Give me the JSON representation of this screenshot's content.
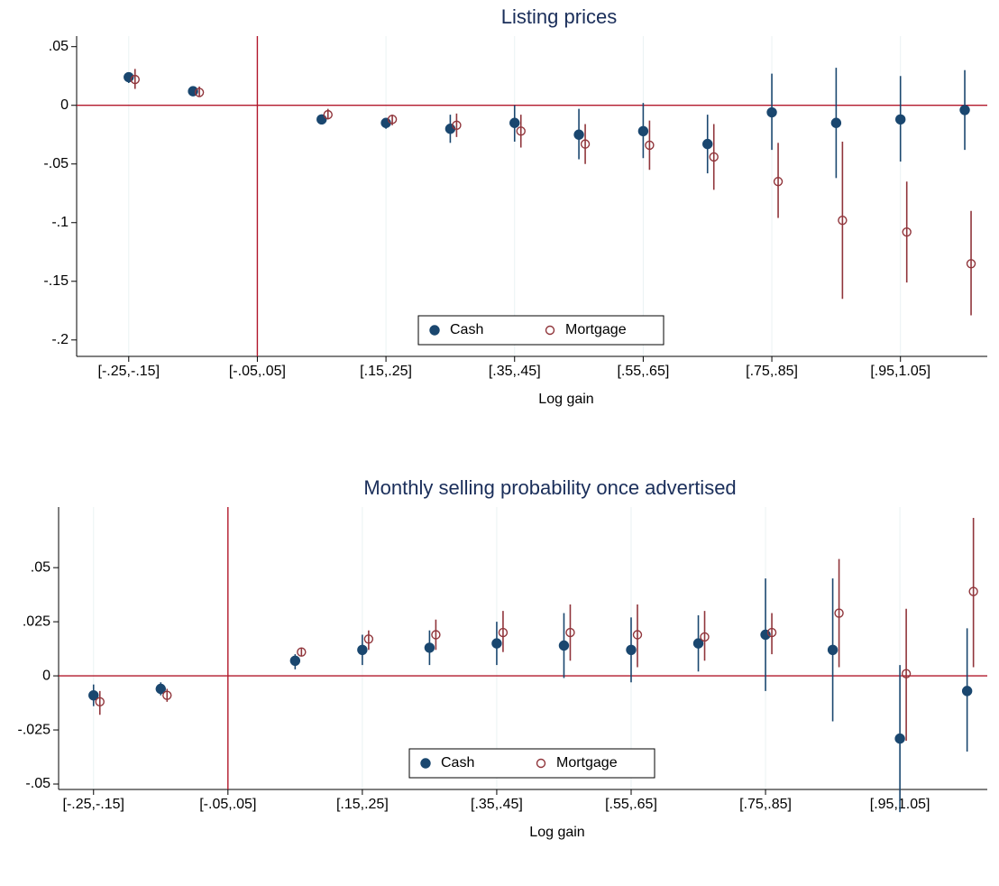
{
  "chart_data": [
    {
      "type": "scatter",
      "title": "Listing prices",
      "x_label": "Log gain",
      "categories": [
        "[-.25,-.15]",
        null,
        "[-.05,.05]",
        null,
        "[.15,.25]",
        null,
        "[.35,.45]",
        null,
        "[.55,.65]",
        null,
        "[.75,.85]",
        null,
        "[.95,1.05]",
        null
      ],
      "ylim": [
        -0.214,
        0.059
      ],
      "yticks": [
        {
          "value": 0.05,
          "label": ".05"
        },
        0,
        {
          "value": -0.05,
          "label": "-.05"
        },
        {
          "value": -0.1,
          "label": "-.1"
        },
        {
          "value": -0.15,
          "label": "-.15"
        },
        {
          "value": -0.2,
          "label": "-.2"
        }
      ],
      "reference_lines": {
        "y": 0,
        "x": "[-.05,.05]",
        "color": "#b2182b"
      },
      "grid": true,
      "legend": "bottom",
      "series": [
        {
          "name": "Cash",
          "color": "#1a476f",
          "marker": "filled",
          "values": [
            0.024,
            0.012,
            null,
            -0.012,
            -0.015,
            -0.02,
            -0.015,
            -0.025,
            -0.022,
            -0.033,
            -0.006,
            -0.015,
            -0.012,
            -0.004
          ],
          "ci_low": [
            0.019,
            0.008,
            null,
            -0.015,
            -0.02,
            -0.032,
            -0.031,
            -0.046,
            -0.045,
            -0.058,
            -0.038,
            -0.062,
            -0.048,
            -0.038
          ],
          "ci_high": [
            0.028,
            0.015,
            null,
            -0.009,
            -0.011,
            -0.008,
            0,
            -0.003,
            0.002,
            -0.008,
            0.027,
            0.032,
            0.025,
            0.03
          ]
        },
        {
          "name": "Mortgage",
          "color": "#90353b",
          "marker": "hollow",
          "values": [
            0.022,
            0.011,
            null,
            -0.008,
            -0.012,
            -0.017,
            -0.022,
            -0.033,
            -0.034,
            -0.044,
            -0.065,
            -0.098,
            -0.108,
            -0.135
          ],
          "ci_low": [
            0.014,
            0.007,
            null,
            -0.012,
            -0.017,
            -0.027,
            -0.036,
            -0.05,
            -0.055,
            -0.072,
            -0.096,
            -0.165,
            -0.151,
            -0.179
          ],
          "ci_high": [
            0.031,
            0.016,
            null,
            -0.003,
            -0.008,
            -0.007,
            -0.008,
            -0.016,
            -0.013,
            -0.016,
            -0.032,
            -0.031,
            -0.065,
            -0.09
          ]
        }
      ]
    },
    {
      "type": "scatter",
      "title": "Monthly selling probability once advertised",
      "x_label": "Log gain",
      "categories": [
        "[-.25,-.15]",
        null,
        "[-.05,.05]",
        null,
        "[.15,.25]",
        null,
        "[.35,.45]",
        null,
        "[.55,.65]",
        null,
        "[.75,.85]",
        null,
        "[.95,1.05]",
        null
      ],
      "ylim": [
        -0.0525,
        0.078
      ],
      "yticks": [
        {
          "value": 0.05,
          "label": ".05"
        },
        {
          "value": 0.025,
          "label": ".025"
        },
        0,
        {
          "value": -0.025,
          "label": "-.025"
        },
        {
          "value": -0.05,
          "label": "-.05"
        }
      ],
      "reference_lines": {
        "y": 0,
        "x": "[-.05,.05]",
        "color": "#b2182b"
      },
      "grid": true,
      "legend": "bottom",
      "series": [
        {
          "name": "Cash",
          "color": "#1a476f",
          "marker": "filled",
          "values": [
            -0.009,
            -0.006,
            null,
            0.007,
            0.012,
            0.013,
            0.015,
            0.014,
            0.012,
            0.015,
            0.019,
            0.012,
            -0.029,
            -0.007
          ],
          "ci_low": [
            -0.014,
            -0.009,
            null,
            0.003,
            0.005,
            0.005,
            0.005,
            -0.001,
            -0.003,
            0.002,
            -0.007,
            -0.021,
            -0.063,
            -0.035
          ],
          "ci_high": [
            -0.004,
            -0.003,
            null,
            0.01,
            0.019,
            0.021,
            0.025,
            0.029,
            0.027,
            0.028,
            0.045,
            0.045,
            0.005,
            0.022
          ]
        },
        {
          "name": "Mortgage",
          "color": "#90353b",
          "marker": "hollow",
          "values": [
            -0.012,
            -0.009,
            null,
            0.011,
            0.017,
            0.019,
            0.02,
            0.02,
            0.019,
            0.018,
            0.02,
            0.029,
            0.001,
            0.039
          ],
          "ci_low": [
            -0.018,
            -0.012,
            null,
            0.009,
            0.012,
            0.012,
            0.011,
            0.007,
            0.004,
            0.007,
            0.01,
            0.004,
            -0.03,
            0.004
          ],
          "ci_high": [
            -0.007,
            -0.006,
            null,
            0.013,
            0.021,
            0.026,
            0.03,
            0.033,
            0.033,
            0.03,
            0.029,
            0.054,
            0.031,
            0.073
          ]
        }
      ]
    }
  ]
}
